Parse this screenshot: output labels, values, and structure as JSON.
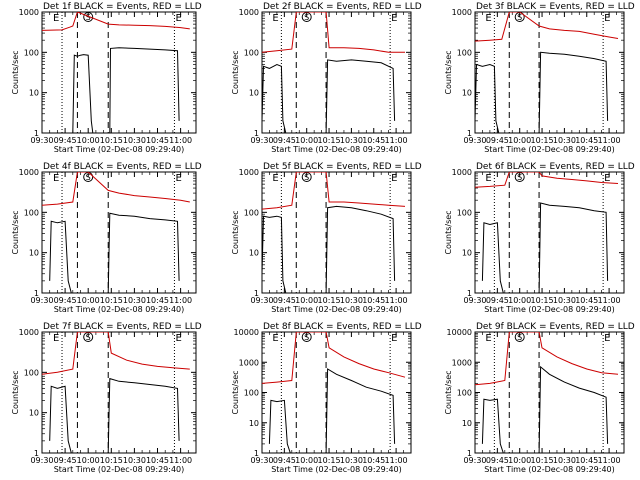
{
  "figure": {
    "grid_rows": 3,
    "grid_cols": 3
  },
  "shared": {
    "x_axis_label": "Start Time (02-Dec-08 09:29:40)",
    "y_axis_label": "Counts/sec",
    "x_tick_labels": [
      "09:30",
      "09:45",
      "10:00",
      "10:15",
      "10:30",
      "10:45",
      "11:00"
    ],
    "x_tick_values_min": [
      0,
      15,
      30,
      45,
      60,
      75,
      90
    ],
    "x_range_min": [
      0,
      100
    ],
    "y_scale": "log",
    "series_names": [
      "BLACK = Events",
      "RED = LLD"
    ],
    "series_colors": {
      "events": "#000000",
      "lld": "#cc0000"
    },
    "markers": {
      "start": "E",
      "middle": "S",
      "end": "E"
    },
    "marker_x_min": {
      "dotted": [
        13,
        86
      ],
      "dashed": [
        23,
        43
      ],
      "middle": 30
    }
  },
  "chart_data": [
    {
      "type": "line",
      "title": "Det 1f BLACK = Events, RED = LLD",
      "ylim": [
        1,
        1000
      ],
      "y_tick_labels": [
        "1",
        "10",
        "100",
        "1000"
      ],
      "series": [
        {
          "name": "LLD",
          "color": "#cc0000",
          "x": [
            0,
            13,
            18,
            20,
            23,
            43,
            50,
            60,
            70,
            80,
            90,
            96
          ],
          "y": [
            350,
            360,
            420,
            450,
            1000,
            500,
            480,
            470,
            460,
            440,
            410,
            380
          ]
        },
        {
          "name": "Events",
          "color": "#000000",
          "x": [
            20,
            21,
            23,
            25,
            27,
            30,
            32,
            33,
            44,
            44.5,
            50,
            60,
            70,
            80,
            88,
            89
          ],
          "y": [
            1,
            85,
            80,
            85,
            88,
            85,
            2,
            1,
            1,
            125,
            130,
            125,
            120,
            115,
            110,
            2
          ]
        }
      ]
    },
    {
      "type": "line",
      "title": "Det 2f BLACK = Events, RED = LLD",
      "ylim": [
        1,
        1000
      ],
      "y_tick_labels": [
        "1",
        "10",
        "100",
        "1000"
      ],
      "series": [
        {
          "name": "LLD",
          "color": "#cc0000",
          "x": [
            0,
            10,
            20,
            23,
            43,
            45,
            55,
            65,
            75,
            85,
            96
          ],
          "y": [
            100,
            110,
            120,
            1000,
            1000,
            130,
            130,
            125,
            115,
            100,
            100
          ]
        },
        {
          "name": "Events",
          "color": "#000000",
          "x": [
            0,
            1,
            5,
            10,
            13,
            14,
            16,
            43,
            44,
            50,
            60,
            70,
            80,
            88,
            89
          ],
          "y": [
            2,
            45,
            40,
            50,
            45,
            2,
            1,
            1,
            65,
            60,
            65,
            60,
            55,
            40,
            2
          ]
        }
      ]
    },
    {
      "type": "line",
      "title": "Det 3f BLACK = Events, RED = LLD",
      "ylim": [
        1,
        1000
      ],
      "y_tick_labels": [
        "1",
        "10",
        "100",
        "1000"
      ],
      "series": [
        {
          "name": "LLD",
          "color": "#cc0000",
          "x": [
            0,
            10,
            18,
            23,
            30,
            43,
            50,
            60,
            70,
            80,
            90,
            96
          ],
          "y": [
            190,
            200,
            210,
            1000,
            1000,
            450,
            380,
            350,
            330,
            280,
            240,
            220
          ]
        },
        {
          "name": "Events",
          "color": "#000000",
          "x": [
            0,
            1,
            5,
            10,
            13,
            14,
            16,
            43,
            44,
            50,
            60,
            70,
            80,
            88,
            89
          ],
          "y": [
            2,
            50,
            45,
            50,
            45,
            2,
            1,
            1,
            100,
            95,
            90,
            80,
            70,
            60,
            2
          ]
        }
      ]
    },
    {
      "type": "line",
      "title": "Det 4f BLACK = Events, RED = LLD",
      "ylim": [
        1,
        1000
      ],
      "y_tick_labels": [
        "1",
        "10",
        "100",
        "1000"
      ],
      "series": [
        {
          "name": "LLD",
          "color": "#cc0000",
          "x": [
            0,
            10,
            20,
            23,
            30,
            43,
            50,
            60,
            70,
            80,
            90,
            96
          ],
          "y": [
            150,
            160,
            180,
            1000,
            1000,
            350,
            300,
            260,
            240,
            220,
            200,
            180
          ]
        },
        {
          "name": "Events",
          "color": "#000000",
          "x": [
            5,
            6,
            10,
            15,
            17,
            19,
            43,
            44,
            50,
            60,
            70,
            80,
            88,
            89
          ],
          "y": [
            2,
            60,
            55,
            60,
            2,
            1,
            1,
            95,
            85,
            80,
            70,
            65,
            60,
            2
          ]
        }
      ]
    },
    {
      "type": "line",
      "title": "Det 5f BLACK = Events, RED = LLD",
      "ylim": [
        1,
        1000
      ],
      "y_tick_labels": [
        "1",
        "10",
        "100",
        "1000"
      ],
      "series": [
        {
          "name": "LLD",
          "color": "#cc0000",
          "x": [
            0,
            10,
            20,
            23,
            43,
            45,
            55,
            65,
            75,
            85,
            96
          ],
          "y": [
            120,
            130,
            150,
            1000,
            1000,
            180,
            180,
            170,
            160,
            150,
            140
          ]
        },
        {
          "name": "Events",
          "color": "#000000",
          "x": [
            0,
            1,
            5,
            10,
            13,
            14,
            16,
            43,
            44,
            50,
            60,
            70,
            80,
            88,
            89
          ],
          "y": [
            3,
            80,
            75,
            80,
            75,
            2,
            1,
            1,
            130,
            140,
            130,
            110,
            90,
            70,
            2
          ]
        }
      ]
    },
    {
      "type": "line",
      "title": "Det 6f BLACK = Events, RED = LLD",
      "ylim": [
        1,
        1000
      ],
      "y_tick_labels": [
        "1",
        "10",
        "100",
        "1000"
      ],
      "series": [
        {
          "name": "LLD",
          "color": "#cc0000",
          "x": [
            0,
            10,
            20,
            23,
            43,
            45,
            55,
            65,
            75,
            85,
            96
          ],
          "y": [
            420,
            440,
            470,
            1000,
            1000,
            800,
            700,
            650,
            600,
            550,
            520
          ]
        },
        {
          "name": "Events",
          "color": "#000000",
          "x": [
            5,
            6,
            10,
            15,
            17,
            19,
            43,
            44,
            50,
            60,
            70,
            80,
            88,
            89
          ],
          "y": [
            2,
            55,
            50,
            55,
            2,
            1,
            1,
            170,
            150,
            140,
            130,
            110,
            100,
            2
          ]
        }
      ]
    },
    {
      "type": "line",
      "title": "Det 7f BLACK = Events, RED = LLD",
      "ylim": [
        1,
        1000
      ],
      "y_tick_labels": [
        "1",
        "10",
        "100",
        "1000"
      ],
      "series": [
        {
          "name": "LLD",
          "color": "#cc0000",
          "x": [
            0,
            10,
            20,
            23,
            43,
            45,
            55,
            65,
            75,
            85,
            96
          ],
          "y": [
            90,
            100,
            120,
            1000,
            1000,
            300,
            200,
            160,
            140,
            130,
            120
          ]
        },
        {
          "name": "Events",
          "color": "#000000",
          "x": [
            5,
            6,
            10,
            15,
            17,
            19,
            43,
            44,
            50,
            60,
            70,
            80,
            88,
            89
          ],
          "y": [
            2,
            45,
            40,
            45,
            2,
            1,
            1,
            70,
            60,
            55,
            50,
            45,
            40,
            2
          ]
        }
      ]
    },
    {
      "type": "line",
      "title": "Det 8f BLACK = Events, RED = LLD",
      "ylim": [
        1,
        10000
      ],
      "y_tick_labels": [
        "1",
        "10",
        "100",
        "1000",
        "10000"
      ],
      "series": [
        {
          "name": "LLD",
          "color": "#cc0000",
          "x": [
            0,
            10,
            20,
            23,
            43,
            45,
            55,
            65,
            75,
            85,
            96
          ],
          "y": [
            200,
            220,
            250,
            10000,
            10000,
            3000,
            1500,
            900,
            600,
            450,
            320
          ]
        },
        {
          "name": "Events",
          "color": "#000000",
          "x": [
            5,
            6,
            10,
            15,
            17,
            19,
            43,
            44,
            50,
            60,
            70,
            80,
            88,
            89
          ],
          "y": [
            2,
            55,
            50,
            55,
            2,
            1,
            1,
            600,
            400,
            250,
            150,
            110,
            80,
            2
          ]
        }
      ]
    },
    {
      "type": "line",
      "title": "Det 9f BLACK = Events, RED = LLD",
      "ylim": [
        1,
        10000
      ],
      "y_tick_labels": [
        "1",
        "10",
        "100",
        "1000",
        "10000"
      ],
      "series": [
        {
          "name": "LLD",
          "color": "#cc0000",
          "x": [
            0,
            10,
            20,
            23,
            43,
            45,
            55,
            65,
            75,
            85,
            96
          ],
          "y": [
            180,
            200,
            250,
            10000,
            10000,
            3000,
            1500,
            900,
            600,
            450,
            400
          ]
        },
        {
          "name": "Events",
          "color": "#000000",
          "x": [
            5,
            6,
            10,
            15,
            17,
            19,
            43,
            44,
            50,
            60,
            70,
            80,
            88,
            89
          ],
          "y": [
            2,
            60,
            55,
            60,
            2,
            1,
            1,
            700,
            400,
            220,
            140,
            100,
            70,
            2
          ]
        }
      ]
    }
  ]
}
